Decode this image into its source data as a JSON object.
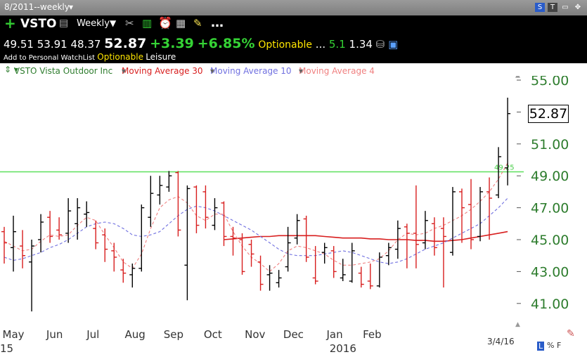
{
  "window": {
    "title": "8/2011--weekly"
  },
  "toolbar": {
    "symbol": "VSTO",
    "period": "Weekly",
    "open": "49.51",
    "high": "53.91",
    "low": "48.37",
    "last": "52.87",
    "change": "+3.39",
    "change_pct": "+6.85%",
    "optionable": "Optionable",
    "dots": "...",
    "stat1": "5.1",
    "stat2": "1.34",
    "add_watchlist": "Add to Personal WatchList",
    "optionable2": "Optionable",
    "industry": "Leisure"
  },
  "legend": {
    "security": "VSTO Vista Outdoor Inc",
    "ma30": "Moving Average 30",
    "ma10": "Moving Average 10",
    "ma4": "Moving Average 4"
  },
  "colors": {
    "ma30": "#d81e1e",
    "ma10": "#7070e0",
    "ma4": "#f08080",
    "up": "#000000",
    "down": "#d81e1e",
    "hline": "#5ee05e",
    "ylabels": "#2e7d2e"
  },
  "footer": {
    "date": "3/4/16",
    "scale_L": "L",
    "scale_pct": "%",
    "scale_F": "F"
  },
  "chart_data": {
    "type": "bar",
    "subtype": "ohlc",
    "title": "VSTO Vista Outdoor Inc weekly",
    "y_ticks": [
      "55.00",
      "53.00",
      "51.00",
      "49.00",
      "47.00",
      "45.00",
      "43.00",
      "41.00"
    ],
    "ylim": [
      40.0,
      55.5
    ],
    "last_price_label": "52.87",
    "horizontal_line": {
      "value": 49.25,
      "label": "49.25"
    },
    "x_labels": [
      {
        "label": "May",
        "idx": 1
      },
      {
        "label": "Jun",
        "idx": 5.5
      },
      {
        "label": "Jul",
        "idx": 9.7
      },
      {
        "label": "Aug",
        "idx": 14.3
      },
      {
        "label": "Sep",
        "idx": 18.5
      },
      {
        "label": "Oct",
        "idx": 22.8
      },
      {
        "label": "Nov",
        "idx": 27.4
      },
      {
        "label": "Dec",
        "idx": 31.6
      },
      {
        "label": "Jan",
        "idx": 36.1
      },
      {
        "label": "Feb",
        "idx": 40.2
      }
    ],
    "year_labels": [
      {
        "label": "15",
        "idx": 0
      },
      {
        "label": "2016",
        "idx": 36
      }
    ],
    "bars": [
      {
        "o": 45.5,
        "h": 45.8,
        "l": 43.5,
        "c": 44.8
      },
      {
        "o": 44.5,
        "h": 46.5,
        "l": 43.0,
        "c": 45.5
      },
      {
        "o": 44.6,
        "h": 45.6,
        "l": 43.2,
        "c": 44.0
      },
      {
        "o": 43.6,
        "h": 45.0,
        "l": 40.5,
        "c": 44.6
      },
      {
        "o": 45.0,
        "h": 46.6,
        "l": 44.2,
        "c": 46.1
      },
      {
        "o": 46.4,
        "h": 46.8,
        "l": 44.8,
        "c": 45.2
      },
      {
        "o": 45.6,
        "h": 46.4,
        "l": 45.0,
        "c": 45.3
      },
      {
        "o": 45.4,
        "h": 47.6,
        "l": 44.8,
        "c": 46.8
      },
      {
        "o": 46.0,
        "h": 47.6,
        "l": 45.0,
        "c": 47.0
      },
      {
        "o": 46.6,
        "h": 47.4,
        "l": 45.8,
        "c": 46.7
      },
      {
        "o": 45.7,
        "h": 46.2,
        "l": 44.4,
        "c": 44.8
      },
      {
        "o": 45.3,
        "h": 45.7,
        "l": 43.6,
        "c": 44.4
      },
      {
        "o": 44.3,
        "h": 44.8,
        "l": 43.0,
        "c": 43.9
      },
      {
        "o": 43.1,
        "h": 43.8,
        "l": 42.3,
        "c": 42.9
      },
      {
        "o": 42.8,
        "h": 43.5,
        "l": 42.0,
        "c": 43.2
      },
      {
        "o": 43.2,
        "h": 47.2,
        "l": 43.0,
        "c": 47.0
      },
      {
        "o": 46.4,
        "h": 49.0,
        "l": 45.8,
        "c": 47.9
      },
      {
        "o": 47.8,
        "h": 49.0,
        "l": 47.2,
        "c": 48.4
      },
      {
        "o": 48.3,
        "h": 49.3,
        "l": 48.0,
        "c": 49.0
      },
      {
        "o": 49.2,
        "h": 49.3,
        "l": 45.2,
        "c": 45.6
      },
      {
        "o": 43.4,
        "h": 48.4,
        "l": 41.2,
        "c": 48.2
      },
      {
        "o": 48.3,
        "h": 48.4,
        "l": 45.4,
        "c": 45.9
      },
      {
        "o": 48.0,
        "h": 48.4,
        "l": 45.7,
        "c": 46.4
      },
      {
        "o": 45.9,
        "h": 47.6,
        "l": 45.6,
        "c": 47.0
      },
      {
        "o": 47.3,
        "h": 47.4,
        "l": 44.6,
        "c": 45.2
      },
      {
        "o": 45.2,
        "h": 45.8,
        "l": 44.0,
        "c": 45.1
      },
      {
        "o": 45.0,
        "h": 45.4,
        "l": 42.8,
        "c": 43.0
      },
      {
        "o": 44.7,
        "h": 45.0,
        "l": 43.3,
        "c": 44.1
      },
      {
        "o": 43.6,
        "h": 44.0,
        "l": 41.8,
        "c": 42.2
      },
      {
        "o": 42.8,
        "h": 43.4,
        "l": 41.8,
        "c": 42.9
      },
      {
        "o": 42.3,
        "h": 43.1,
        "l": 42.0,
        "c": 42.6
      },
      {
        "o": 43.3,
        "h": 45.8,
        "l": 43.0,
        "c": 44.8
      },
      {
        "o": 45.1,
        "h": 46.6,
        "l": 44.7,
        "c": 46.2
      },
      {
        "o": 46.3,
        "h": 46.5,
        "l": 43.6,
        "c": 43.9
      },
      {
        "o": 42.6,
        "h": 44.6,
        "l": 42.2,
        "c": 42.4
      },
      {
        "o": 44.2,
        "h": 44.8,
        "l": 43.5,
        "c": 44.5
      },
      {
        "o": 44.3,
        "h": 44.6,
        "l": 42.6,
        "c": 43.0
      },
      {
        "o": 42.6,
        "h": 43.8,
        "l": 42.4,
        "c": 42.8
      },
      {
        "o": 42.4,
        "h": 44.8,
        "l": 42.3,
        "c": 44.3
      },
      {
        "o": 42.9,
        "h": 43.3,
        "l": 42.0,
        "c": 42.2
      },
      {
        "o": 42.4,
        "h": 43.5,
        "l": 41.9,
        "c": 42.1
      },
      {
        "o": 42.1,
        "h": 44.2,
        "l": 42.0,
        "c": 43.9
      },
      {
        "o": 44.0,
        "h": 44.8,
        "l": 43.4,
        "c": 44.5
      },
      {
        "o": 44.4,
        "h": 46.2,
        "l": 43.8,
        "c": 45.7
      },
      {
        "o": 45.8,
        "h": 46.0,
        "l": 43.2,
        "c": 45.4
      },
      {
        "o": 45.4,
        "h": 48.4,
        "l": 43.2,
        "c": 44.7
      },
      {
        "o": 44.8,
        "h": 46.8,
        "l": 44.4,
        "c": 46.2
      },
      {
        "o": 46.0,
        "h": 46.4,
        "l": 44.0,
        "c": 44.5
      },
      {
        "o": 45.7,
        "h": 46.4,
        "l": 42.0,
        "c": 45.2
      },
      {
        "o": 44.2,
        "h": 48.3,
        "l": 44.0,
        "c": 48.0
      },
      {
        "o": 48.0,
        "h": 48.2,
        "l": 44.8,
        "c": 47.0
      },
      {
        "o": 47.2,
        "h": 48.8,
        "l": 44.4,
        "c": 45.0
      },
      {
        "o": 45.2,
        "h": 48.3,
        "l": 44.9,
        "c": 48.0
      },
      {
        "o": 48.0,
        "h": 48.9,
        "l": 45.0,
        "c": 47.6
      },
      {
        "o": 47.8,
        "h": 50.8,
        "l": 47.6,
        "c": 50.2
      },
      {
        "o": 49.5,
        "h": 53.9,
        "l": 48.4,
        "c": 52.9
      }
    ],
    "series": [
      {
        "name": "Moving Average 30",
        "start": 24,
        "values": [
          45.0,
          45.05,
          45.1,
          45.15,
          45.2,
          45.2,
          45.25,
          45.25,
          45.25,
          45.25,
          45.25,
          45.2,
          45.15,
          45.1,
          45.1,
          45.1,
          45.05,
          45.05,
          45.0,
          45.0,
          45.0,
          44.95,
          44.95,
          44.9,
          44.9,
          44.95,
          45.0,
          45.1,
          45.2,
          45.3,
          45.4,
          45.5
        ]
      },
      {
        "name": "Moving Average 10",
        "start": 0,
        "values": [
          43.9,
          43.7,
          43.8,
          44.0,
          44.2,
          44.5,
          44.7,
          45.0,
          45.4,
          45.8,
          46.0,
          46.1,
          46.0,
          45.7,
          45.3,
          45.2,
          45.3,
          45.5,
          46.0,
          46.5,
          46.9,
          47.1,
          47.0,
          46.8,
          46.5,
          46.2,
          45.9,
          45.6,
          45.2,
          44.8,
          44.4,
          44.1,
          44.0,
          44.0,
          44.0,
          44.1,
          44.2,
          44.3,
          44.2,
          44.0,
          43.8,
          43.6,
          43.5,
          43.6,
          43.8,
          44.1,
          44.4,
          44.6,
          44.8,
          45.1,
          45.4,
          45.7,
          46.0,
          46.5,
          47.0,
          47.6
        ]
      },
      {
        "name": "Moving Average 4",
        "start": 0,
        "values": [
          44.9,
          44.6,
          44.3,
          44.4,
          44.9,
          45.3,
          45.2,
          45.3,
          45.9,
          46.4,
          46.2,
          45.3,
          44.5,
          43.6,
          43.2,
          44.1,
          45.7,
          47.0,
          47.5,
          47.7,
          47.3,
          46.5,
          46.2,
          46.6,
          46.6,
          45.5,
          44.6,
          43.9,
          43.5,
          43.0,
          43.5,
          44.3,
          44.6,
          44.5,
          44.3,
          44.1,
          43.7,
          43.4,
          43.4,
          43.5,
          43.6,
          43.8,
          44.3,
          45.0,
          45.4,
          45.3,
          45.4,
          45.7,
          45.9,
          46.2,
          46.5,
          46.9,
          47.4,
          48.0,
          48.8,
          49.8
        ]
      }
    ]
  }
}
